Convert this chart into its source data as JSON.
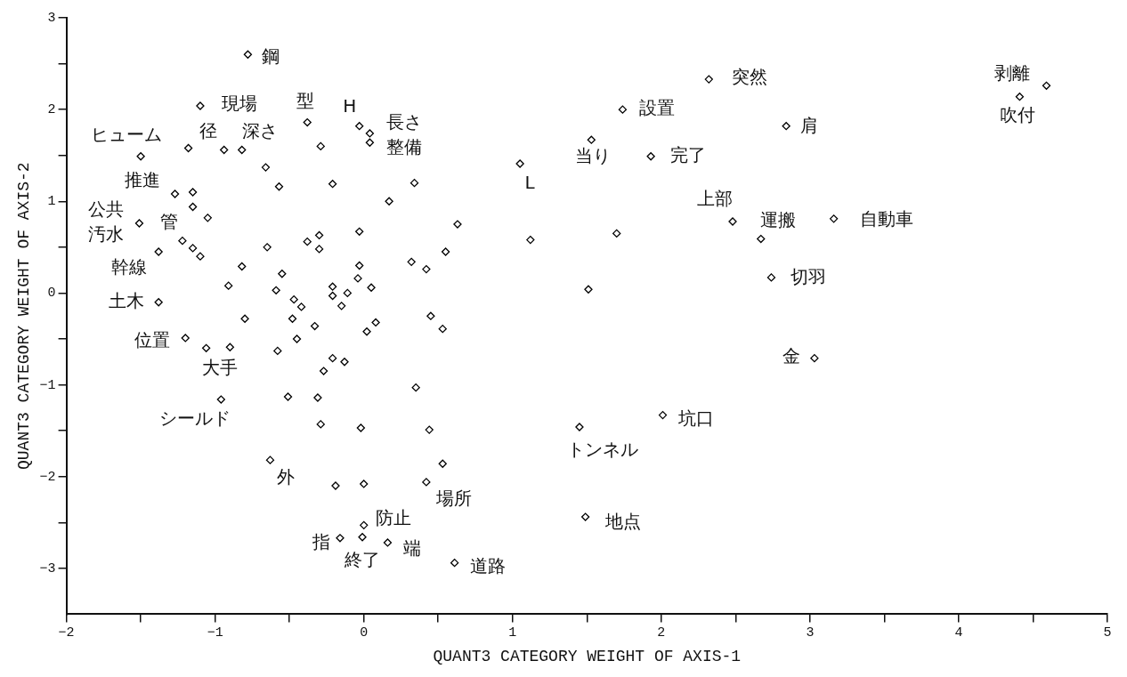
{
  "chart_data": {
    "type": "scatter",
    "xlabel": "QUANT3 CATEGORY WEIGHT OF AXIS-1",
    "ylabel": "QUANT3 CATEGORY WEIGHT OF AXIS-2",
    "xlim": [
      -2,
      5
    ],
    "xticks": [
      -2,
      {
        "value": -1.5,
        "label": null
      },
      -1,
      {
        "value": -0.5,
        "label": null
      },
      0,
      {
        "value": 0.5,
        "label": null
      },
      1,
      {
        "value": 1.5,
        "label": null
      },
      2,
      {
        "value": 2.5,
        "label": null
      },
      3,
      {
        "value": 3.5,
        "label": null
      },
      4,
      {
        "value": 4.5,
        "label": null
      },
      5
    ],
    "ylim": [
      -3.5,
      3
    ],
    "yticks": [
      -3,
      {
        "value": -2.5,
        "label": null
      },
      -2,
      {
        "value": -1.5,
        "label": null
      },
      -1,
      {
        "value": -0.5,
        "label": null
      },
      0,
      {
        "value": 0.5,
        "label": null
      },
      1,
      {
        "value": 1.5,
        "label": null
      },
      2,
      {
        "value": 2.5,
        "label": null
      },
      3
    ],
    "grid": false,
    "legend": false,
    "marker": "diamond",
    "series": [
      {
        "color": "#000000",
        "x": [
          -0.78,
          -1.1,
          -0.38,
          -0.03,
          0.04,
          0.04,
          -0.29,
          -1.18,
          -0.94,
          -0.82,
          -1.5,
          -0.66,
          -0.57,
          -0.21,
          0.34,
          0.17,
          -1.27,
          -1.15,
          -1.15,
          -1.05,
          -1.51,
          -1.22,
          -1.15,
          -1.1,
          -1.38,
          -0.65,
          -0.38,
          -0.3,
          -0.3,
          -0.03,
          0.32,
          -0.82,
          -0.55,
          -0.03,
          -0.04,
          -0.91,
          -0.59,
          -0.21,
          -0.21,
          -0.11,
          0.05,
          -0.47,
          -0.42,
          -0.15,
          -1.38,
          -0.8,
          -0.48,
          -0.33,
          0.08,
          0.02,
          -1.2,
          -1.06,
          -0.9,
          -0.58,
          -0.45,
          -0.21,
          -0.13,
          -0.27,
          0.35,
          -0.96,
          -0.51,
          -0.31,
          -0.29,
          -0.02,
          -0.63,
          -0.19,
          0.0,
          0.0,
          -0.16,
          -0.01,
          0.16,
          2.32,
          1.74,
          1.53,
          1.93,
          1.05,
          2.48,
          2.67,
          0.63,
          1.12,
          1.7,
          0.55,
          0.42,
          1.51,
          0.45,
          0.53,
          0.44,
          0.53,
          0.42,
          0.61,
          2.01,
          1.45,
          1.49,
          2.84,
          4.59,
          4.41,
          3.16,
          2.74,
          3.03
        ],
        "values": [
          2.6,
          2.04,
          1.86,
          1.82,
          1.74,
          1.64,
          1.6,
          1.58,
          1.56,
          1.56,
          1.49,
          1.37,
          1.16,
          1.19,
          1.2,
          1.0,
          1.08,
          1.1,
          0.94,
          0.82,
          0.76,
          0.57,
          0.49,
          0.4,
          0.45,
          0.5,
          0.56,
          0.63,
          0.48,
          0.67,
          0.34,
          0.29,
          0.21,
          0.3,
          0.16,
          0.08,
          0.03,
          0.07,
          -0.03,
          0.0,
          0.06,
          -0.07,
          -0.15,
          -0.14,
          -0.1,
          -0.28,
          -0.28,
          -0.36,
          -0.32,
          -0.42,
          -0.49,
          -0.6,
          -0.59,
          -0.63,
          -0.5,
          -0.71,
          -0.75,
          -0.85,
          -1.03,
          -1.16,
          -1.13,
          -1.14,
          -1.43,
          -1.47,
          -1.82,
          -2.1,
          -2.08,
          -2.53,
          -2.67,
          -2.66,
          -2.72,
          2.33,
          2.0,
          1.67,
          1.49,
          1.41,
          0.78,
          0.59,
          0.75,
          0.58,
          0.65,
          0.45,
          0.26,
          0.04,
          -0.25,
          -0.39,
          -1.49,
          -1.86,
          -2.06,
          -2.94,
          -1.33,
          -1.46,
          -2.44,
          1.82,
          2.26,
          2.14,
          0.81,
          0.17,
          -0.71
        ]
      }
    ],
    "annotations": [
      {
        "text": "鋼",
        "x": -0.78,
        "y": 2.6
      },
      {
        "text": "現場",
        "x": -1.1,
        "y": 2.04
      },
      {
        "text": "型",
        "x": -0.38,
        "y": 1.86
      },
      {
        "text": "H",
        "x": -0.03,
        "y": 1.82
      },
      {
        "text": "長さ",
        "x": 0.04,
        "y": 1.74
      },
      {
        "text": "整備",
        "x": 0.04,
        "y": 1.64
      },
      {
        "text": "ヒューム",
        "x": -1.18,
        "y": 1.58
      },
      {
        "text": "径",
        "x": -0.94,
        "y": 1.56
      },
      {
        "text": "深さ",
        "x": -0.82,
        "y": 1.56
      },
      {
        "text": "推進",
        "x": -1.27,
        "y": 1.08
      },
      {
        "text": "公共",
        "x": -1.51,
        "y": 0.76
      },
      {
        "text": "汚水",
        "x": -1.51,
        "y": 0.76
      },
      {
        "text": "管",
        "x": -1.22,
        "y": 0.57
      },
      {
        "text": "幹線",
        "x": -1.38,
        "y": 0.45
      },
      {
        "text": "土木",
        "x": -1.38,
        "y": -0.1
      },
      {
        "text": "位置",
        "x": -1.2,
        "y": -0.49
      },
      {
        "text": "大手",
        "x": -1.06,
        "y": -0.6
      },
      {
        "text": "シールド",
        "x": -0.96,
        "y": -1.16
      },
      {
        "text": "外",
        "x": -0.63,
        "y": -1.82
      },
      {
        "text": "防止",
        "x": 0.0,
        "y": -2.53
      },
      {
        "text": "指",
        "x": -0.16,
        "y": -2.67
      },
      {
        "text": "終了",
        "x": -0.01,
        "y": -2.66
      },
      {
        "text": "端",
        "x": 0.16,
        "y": -2.72
      },
      {
        "text": "場所",
        "x": 0.42,
        "y": -2.06
      },
      {
        "text": "道路",
        "x": 0.61,
        "y": -2.94
      },
      {
        "text": "突然",
        "x": 2.32,
        "y": 2.33
      },
      {
        "text": "設置",
        "x": 1.74,
        "y": 2.0
      },
      {
        "text": "当り",
        "x": 1.53,
        "y": 1.67
      },
      {
        "text": "完了",
        "x": 1.93,
        "y": 1.49
      },
      {
        "text": "L",
        "x": 1.05,
        "y": 1.41
      },
      {
        "text": "上部",
        "x": 2.48,
        "y": 0.78
      },
      {
        "text": "運搬",
        "x": 2.48,
        "y": 0.78
      },
      {
        "text": "肩",
        "x": 2.84,
        "y": 1.82
      },
      {
        "text": "剥離",
        "x": 4.59,
        "y": 2.26
      },
      {
        "text": "吹付",
        "x": 4.41,
        "y": 2.14
      },
      {
        "text": "自動車",
        "x": 3.16,
        "y": 0.81
      },
      {
        "text": "切羽",
        "x": 2.74,
        "y": 0.17
      },
      {
        "text": "金",
        "x": 3.03,
        "y": -0.71
      },
      {
        "text": "坑口",
        "x": 2.01,
        "y": -1.33
      },
      {
        "text": "トンネル",
        "x": 1.45,
        "y": -1.46
      },
      {
        "text": "地点",
        "x": 1.49,
        "y": -2.44
      }
    ]
  }
}
